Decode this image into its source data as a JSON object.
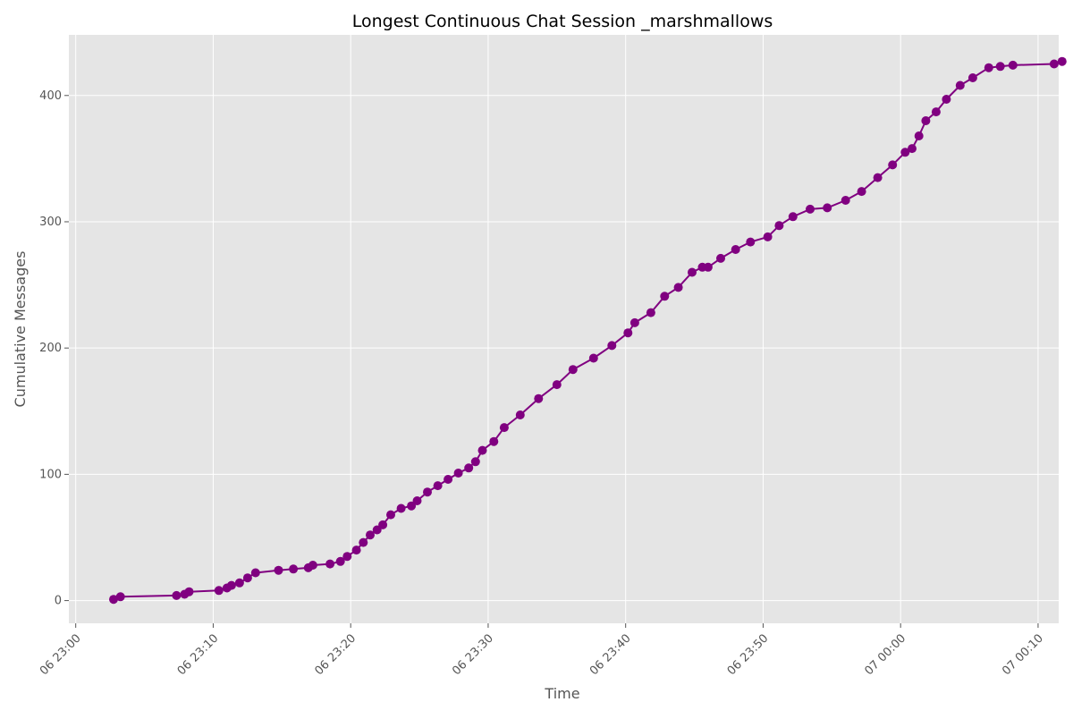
{
  "chart_data": {
    "type": "line",
    "title": "Longest Continuous Chat Session _marshmallows",
    "xlabel": "Time",
    "ylabel": "Cumulative Messages",
    "xlim": [
      "06 22:59:30",
      "07 00:11:30"
    ],
    "ylim": [
      -18,
      448
    ],
    "grid": true,
    "legend": "none",
    "x_ticks": [
      "06 23:00",
      "06 23:10",
      "06 23:20",
      "06 23:30",
      "06 23:40",
      "06 23:50",
      "07 00:00",
      "07 00:10"
    ],
    "y_ticks": [
      0,
      100,
      200,
      300,
      400
    ],
    "series": [
      {
        "color": "#800080",
        "marker": "circle",
        "x": [
          "06 23:02:45",
          "06 23:03:15",
          "06 23:07:20",
          "06 23:07:55",
          "06 23:08:15",
          "06 23:10:25",
          "06 23:11:00",
          "06 23:11:20",
          "06 23:11:55",
          "06 23:12:30",
          "06 23:13:05",
          "06 23:14:45",
          "06 23:15:50",
          "06 23:16:55",
          "06 23:17:15",
          "06 23:18:30",
          "06 23:19:15",
          "06 23:19:45",
          "06 23:20:25",
          "06 23:20:55",
          "06 23:21:25",
          "06 23:21:55",
          "06 23:22:20",
          "06 23:22:55",
          "06 23:23:40",
          "06 23:24:25",
          "06 23:24:50",
          "06 23:25:35",
          "06 23:26:20",
          "06 23:27:05",
          "06 23:27:50",
          "06 23:28:35",
          "06 23:29:05",
          "06 23:29:35",
          "06 23:30:25",
          "06 23:31:10",
          "06 23:32:20",
          "06 23:33:40",
          "06 23:35:00",
          "06 23:36:10",
          "06 23:37:40",
          "06 23:39:00",
          "06 23:40:10",
          "06 23:40:40",
          "06 23:41:50",
          "06 23:42:50",
          "06 23:43:50",
          "06 23:44:50",
          "06 23:45:35",
          "06 23:46:00",
          "06 23:46:55",
          "06 23:48:00",
          "06 23:49:05",
          "06 23:50:20",
          "06 23:51:10",
          "06 23:52:10",
          "06 23:53:25",
          "06 23:54:40",
          "06 23:56:00",
          "06 23:57:10",
          "06 23:58:20",
          "06 23:59:25",
          "07 00:00:20",
          "07 00:00:50",
          "07 00:01:20",
          "07 00:01:50",
          "07 00:02:35",
          "07 00:03:20",
          "07 00:04:20",
          "07 00:05:15",
          "07 00:06:25",
          "07 00:07:15",
          "07 00:08:10",
          "07 00:11:10",
          "07 00:11:45"
        ],
        "y": [
          1,
          3,
          4,
          5,
          7,
          8,
          10,
          12,
          14,
          18,
          22,
          24,
          25,
          26,
          28,
          29,
          31,
          35,
          40,
          46,
          52,
          56,
          60,
          68,
          73,
          75,
          79,
          86,
          91,
          96,
          101,
          105,
          110,
          119,
          126,
          137,
          147,
          160,
          171,
          183,
          192,
          202,
          212,
          220,
          228,
          241,
          248,
          260,
          264,
          264,
          271,
          278,
          284,
          288,
          297,
          304,
          310,
          311,
          317,
          324,
          335,
          345,
          355,
          358,
          368,
          380,
          387,
          397,
          408,
          414,
          422,
          423,
          424,
          425,
          427
        ]
      }
    ]
  }
}
